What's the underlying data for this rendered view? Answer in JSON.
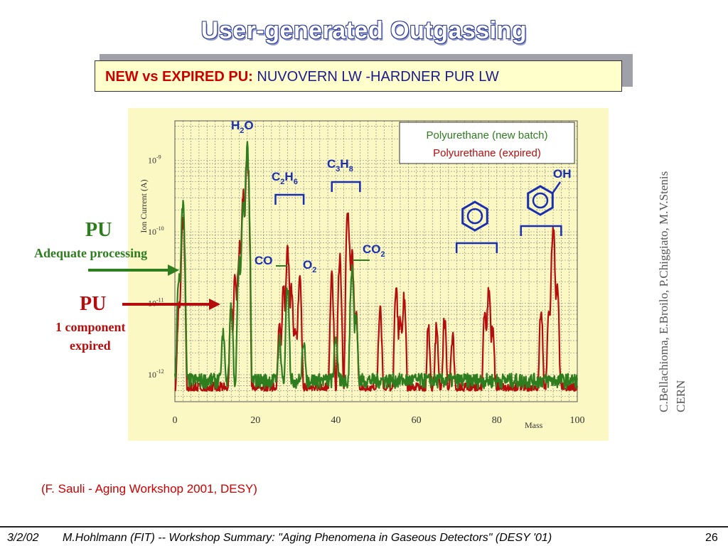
{
  "title": "User-generated Outgassing",
  "subtitle": {
    "red_part": "NEW vs EXPIRED PU",
    "separator": ":",
    "blue_part": "NUVOVERN LW -HARDNER PUR LW"
  },
  "side_labels": {
    "pu_good": "PU",
    "pu_good_desc": "Adequate processing",
    "pu_bad": "PU",
    "pu_bad_desc_1": "1 component",
    "pu_bad_desc_2": "expired"
  },
  "credit": {
    "line1": "C.Bellachioma, E.Broilo, P.Chiggiato, M.V.Stenis",
    "line2": "CERN"
  },
  "reference": "(F. Sauli - Aging Workshop 2001, DESY)",
  "footer": {
    "date": "3/2/02",
    "text": "M.Hohlmann (FIT)  --  Workshop Summary: \"Aging Phenomena in Gaseous Detectors\" (DESY '01)",
    "page": "26"
  },
  "colors": {
    "new_batch": "#2e7d1e",
    "expired": "#b50d0d",
    "annotation": "#1a2fb0",
    "grid": "#7a7a7a"
  },
  "chart_data": {
    "type": "line",
    "xlabel": "Mass",
    "ylabel": "Ion Current (A)",
    "xlim": [
      0,
      100
    ],
    "ylim": [
      5e-13,
      3e-09
    ],
    "yscale": "log",
    "x_ticks": [
      "0",
      "20",
      "40",
      "60",
      "80",
      "100"
    ],
    "y_ticks": [
      {
        "base": "10",
        "exp": "-9",
        "value": 1e-09
      },
      {
        "base": "10",
        "exp": "-10",
        "value": 1e-10
      },
      {
        "base": "10",
        "exp": "-11",
        "value": 1e-11
      },
      {
        "base": "10",
        "exp": "-12",
        "value": 1e-12
      }
    ],
    "legend": {
      "position": "top-right",
      "entries": [
        "Polyurethane (new batch)",
        "Polyurethane (expired)"
      ]
    },
    "series": [
      {
        "name": "Polyurethane (new batch)",
        "peaks": [
          [
            1,
            3e-11
          ],
          [
            2,
            3e-10
          ],
          [
            12,
            4e-12
          ],
          [
            14,
            1e-11
          ],
          [
            16,
            5e-11
          ],
          [
            17,
            3e-10
          ],
          [
            18,
            2e-09
          ],
          [
            26,
            3e-12
          ],
          [
            28,
            2e-11
          ],
          [
            32,
            3e-12
          ],
          [
            40,
            4e-12
          ],
          [
            44,
            4e-11
          ],
          [
            45,
            8e-12
          ]
        ],
        "baseline": 8e-13
      },
      {
        "name": "Polyurethane (expired)",
        "peaks": [
          [
            1,
            1e-11
          ],
          [
            2,
            2e-10
          ],
          [
            14,
            1e-11
          ],
          [
            15,
            3e-11
          ],
          [
            16,
            8e-11
          ],
          [
            17,
            4e-10
          ],
          [
            18,
            1.5e-09
          ],
          [
            26,
            5e-12
          ],
          [
            27,
            2e-11
          ],
          [
            28,
            7e-11
          ],
          [
            29,
            2e-11
          ],
          [
            30,
            5e-12
          ],
          [
            31,
            3e-11
          ],
          [
            39,
            3e-11
          ],
          [
            41,
            5e-11
          ],
          [
            43,
            2.5e-10
          ],
          [
            44,
            6e-11
          ],
          [
            45,
            8e-12
          ],
          [
            51,
            1e-11
          ],
          [
            55,
            2e-11
          ],
          [
            56,
            8e-12
          ],
          [
            57,
            1.5e-11
          ],
          [
            63,
            5e-12
          ],
          [
            65,
            5e-12
          ],
          [
            67,
            7e-12
          ],
          [
            69,
            4e-12
          ],
          [
            77,
            8e-12
          ],
          [
            78,
            2e-11
          ],
          [
            79,
            5e-12
          ],
          [
            91,
            1e-11
          ],
          [
            93,
            1e-11
          ],
          [
            94,
            1.5e-10
          ],
          [
            95,
            2e-11
          ]
        ],
        "baseline": 6e-13
      }
    ],
    "annotations": {
      "h2o": {
        "main": "H",
        "sub": "2",
        "main2": "O",
        "x": 18
      },
      "c2h6": {
        "main": "C",
        "sub": "2",
        "main2": "H",
        "sub2": "6",
        "x_range": [
          25,
          32
        ]
      },
      "c3h8": {
        "main": "C",
        "sub": "3",
        "main2": "H",
        "sub2": "8",
        "x_range": [
          39,
          46
        ]
      },
      "co": {
        "text": "CO",
        "x": 28
      },
      "o2": {
        "main": "O",
        "sub": "2",
        "x": 32
      },
      "co2": {
        "main": "CO",
        "sub": "2",
        "x": 44
      },
      "benzene": {
        "x_range": [
          70,
          80
        ]
      },
      "phenol": {
        "label": "OH",
        "x_range": [
          86,
          96
        ]
      }
    }
  }
}
